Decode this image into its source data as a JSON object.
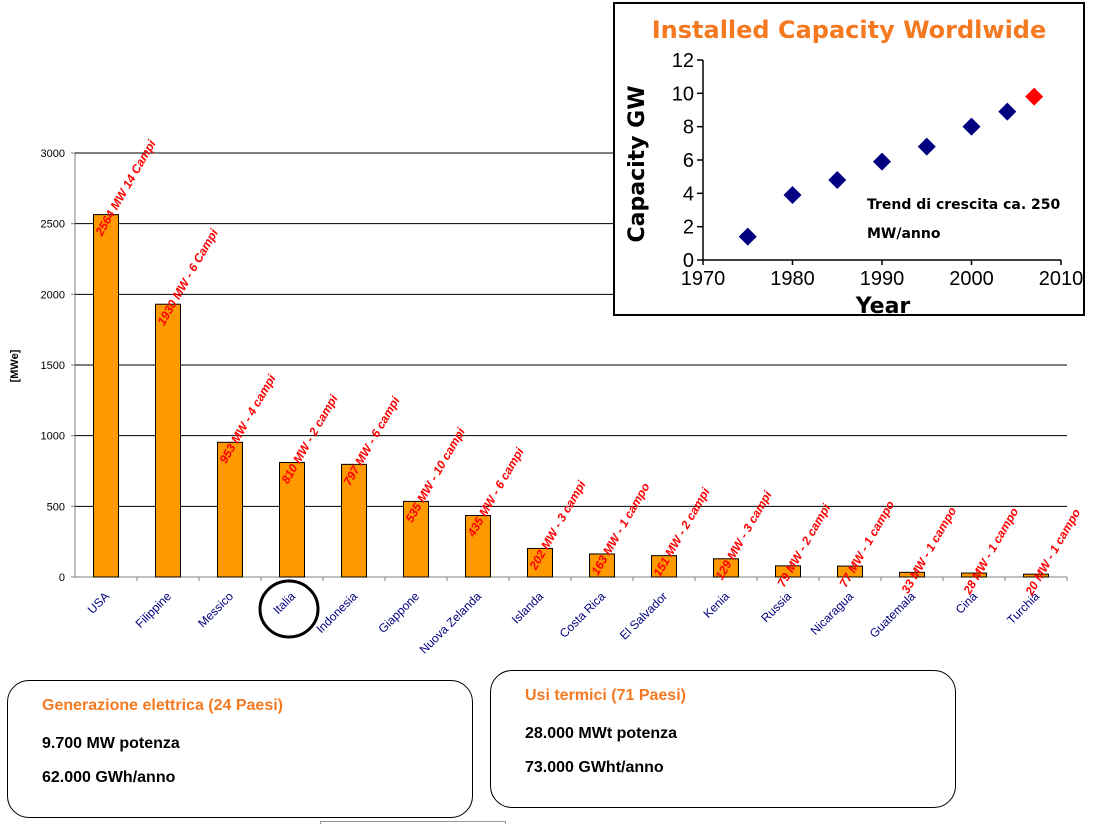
{
  "chart_data": [
    {
      "type": "bar",
      "ylabel": "[MWe]",
      "ylim": [
        0,
        3000
      ],
      "yticks": [
        0,
        500,
        1000,
        1500,
        2000,
        2500,
        3000
      ],
      "grid": true,
      "categories": [
        "USA",
        "Filippine",
        "Messico",
        "Italia",
        "Indonesia",
        "Giappone",
        "Nuova Zelanda",
        "Islanda",
        "Costa Rica",
        "El Salvador",
        "Kenia",
        "Russia",
        "Nicaragua",
        "Guatemala",
        "Cina",
        "Turchia"
      ],
      "values": [
        2564,
        1930,
        953,
        810,
        797,
        535,
        435,
        202,
        163,
        151,
        129,
        79,
        77,
        33,
        28,
        20
      ],
      "data_labels": [
        "2564 MW 14 Campi",
        "1930 MW - 6 Campi",
        "953 MW - 4 campi",
        "810 MW - 2 campi",
        "797 MW - 6 campi",
        "535 MW - 10 campi",
        "435 MW - 6 campi",
        "202 MW - 3 campi",
        "163 MW - 1 campo",
        "151 MW - 2 campi",
        "129 MW - 3 campi",
        "79 MW - 2 campi",
        "77 MW - 1 campo",
        "33 MW - 1 campo",
        "28 MW - 1 campo",
        "20 MW - 1 campo"
      ],
      "highlighted_category": "Italia"
    },
    {
      "type": "scatter",
      "title": "Installed Capacity Wordlwide",
      "xlabel": "Year",
      "ylabel": "Capacity GW",
      "xlim": [
        1970,
        2010
      ],
      "ylim": [
        0,
        12
      ],
      "xticks": [
        1970,
        1980,
        1990,
        2000,
        2010
      ],
      "yticks": [
        0,
        2,
        4,
        6,
        8,
        10,
        12
      ],
      "x": [
        1975,
        1980,
        1985,
        1990,
        1995,
        2000,
        2004,
        2007
      ],
      "y": [
        1.4,
        3.9,
        4.8,
        5.9,
        6.8,
        8.0,
        8.9,
        9.8
      ],
      "annotation": [
        "Trend di crescita ca. 250",
        "MW/anno"
      ]
    }
  ],
  "colors": {
    "bar": "#FF9900",
    "bar_label": "#FF0000",
    "category_label": "#000080",
    "title": "#F47920",
    "marker": "#000080",
    "marker_last": "#FF0000"
  },
  "summary": {
    "electric": {
      "title": "Generazione elettrica (24 Paesi)",
      "line1": "9.700 MW potenza",
      "line2": "62.000 GWh/anno"
    },
    "thermal": {
      "title": "Usi termici (71 Paesi)",
      "line1": "28.000 MWt potenza",
      "line2": "73.000 GWht/anno"
    }
  }
}
